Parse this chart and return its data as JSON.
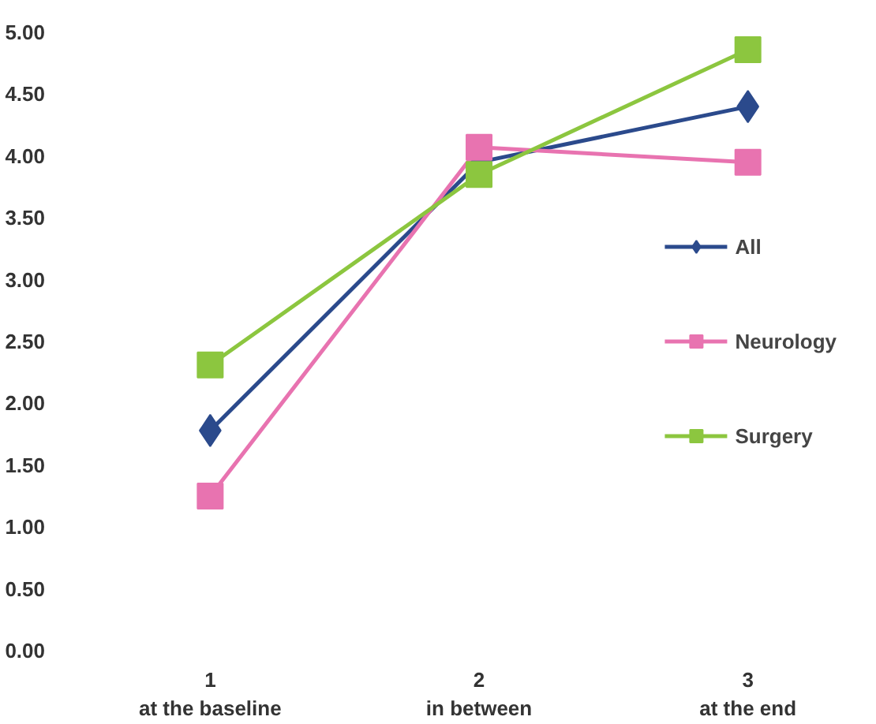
{
  "chart_data": {
    "type": "line",
    "categories": [
      "1\nat the baseline",
      "2\nin between",
      "3\nat the end"
    ],
    "series": [
      {
        "name": "All",
        "color": "#2b4a8c",
        "values": [
          1.78,
          3.95,
          4.4
        ],
        "marker": "diamond"
      },
      {
        "name": "Neurology",
        "color": "#e873b0",
        "values": [
          1.25,
          4.07,
          3.95
        ],
        "marker": "square"
      },
      {
        "name": "Surgery",
        "color": "#8cc63f",
        "values": [
          2.31,
          3.85,
          4.86
        ],
        "marker": "square"
      }
    ],
    "ylim": [
      0,
      5
    ],
    "yticks": [
      {
        "value": 0,
        "label": "0.00"
      },
      {
        "value": 0.5,
        "label": "0.50"
      },
      {
        "value": 1,
        "label": "1.00"
      },
      {
        "value": 1.5,
        "label": "1.50"
      },
      {
        "value": 2,
        "label": "2.00"
      },
      {
        "value": 2.5,
        "label": "2.50"
      },
      {
        "value": 3,
        "label": "3.00"
      },
      {
        "value": 3.5,
        "label": "3.50"
      },
      {
        "value": 4,
        "label": "4.00"
      },
      {
        "value": 4.5,
        "label": "4.50"
      },
      {
        "value": 5,
        "label": "5.00"
      }
    ],
    "grid": false,
    "legend": "right",
    "line_style": "solid"
  }
}
